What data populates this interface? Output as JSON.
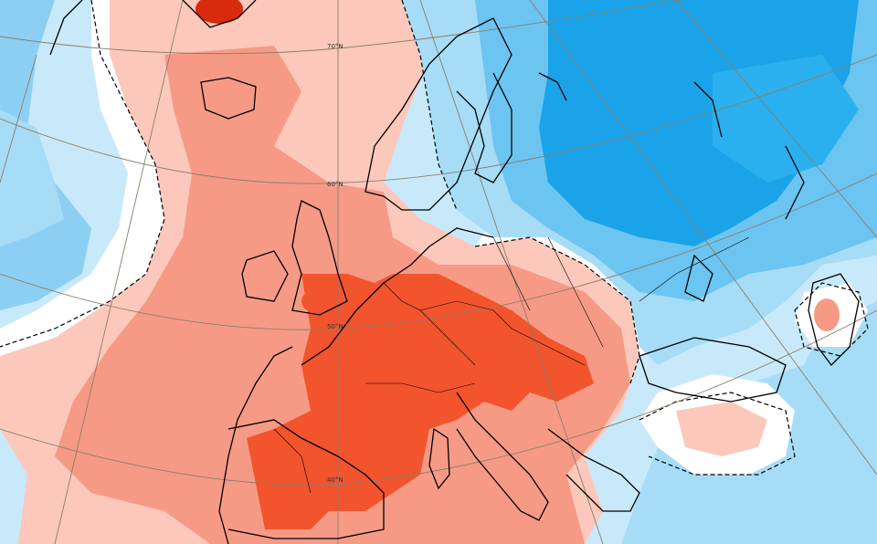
{
  "map": {
    "projection": "polar-stereographic",
    "region": "Europe and North Atlantic",
    "variable": "temperature anomaly",
    "latitude_labels": [
      {
        "id": "lat-70",
        "text": "70°N"
      },
      {
        "id": "lat-60",
        "text": "60°N"
      },
      {
        "id": "lat-50",
        "text": "50°N"
      },
      {
        "id": "lat-40",
        "text": "40°N"
      }
    ],
    "color_scale": {
      "warm_4": "#d9290f",
      "warm_3": "#f2542d",
      "warm_2": "#f69a85",
      "warm_1": "#fbc8bb",
      "neutral": "#ffffff",
      "cool_1": "#c8e9fa",
      "cool_2": "#8ccff2",
      "cool_3": "#4fb8ee",
      "cool_4": "#1aa3e8"
    },
    "graticule_color": "#8a7e6a",
    "coastline_color": "#000000",
    "zero_contour_style": "dashed"
  }
}
